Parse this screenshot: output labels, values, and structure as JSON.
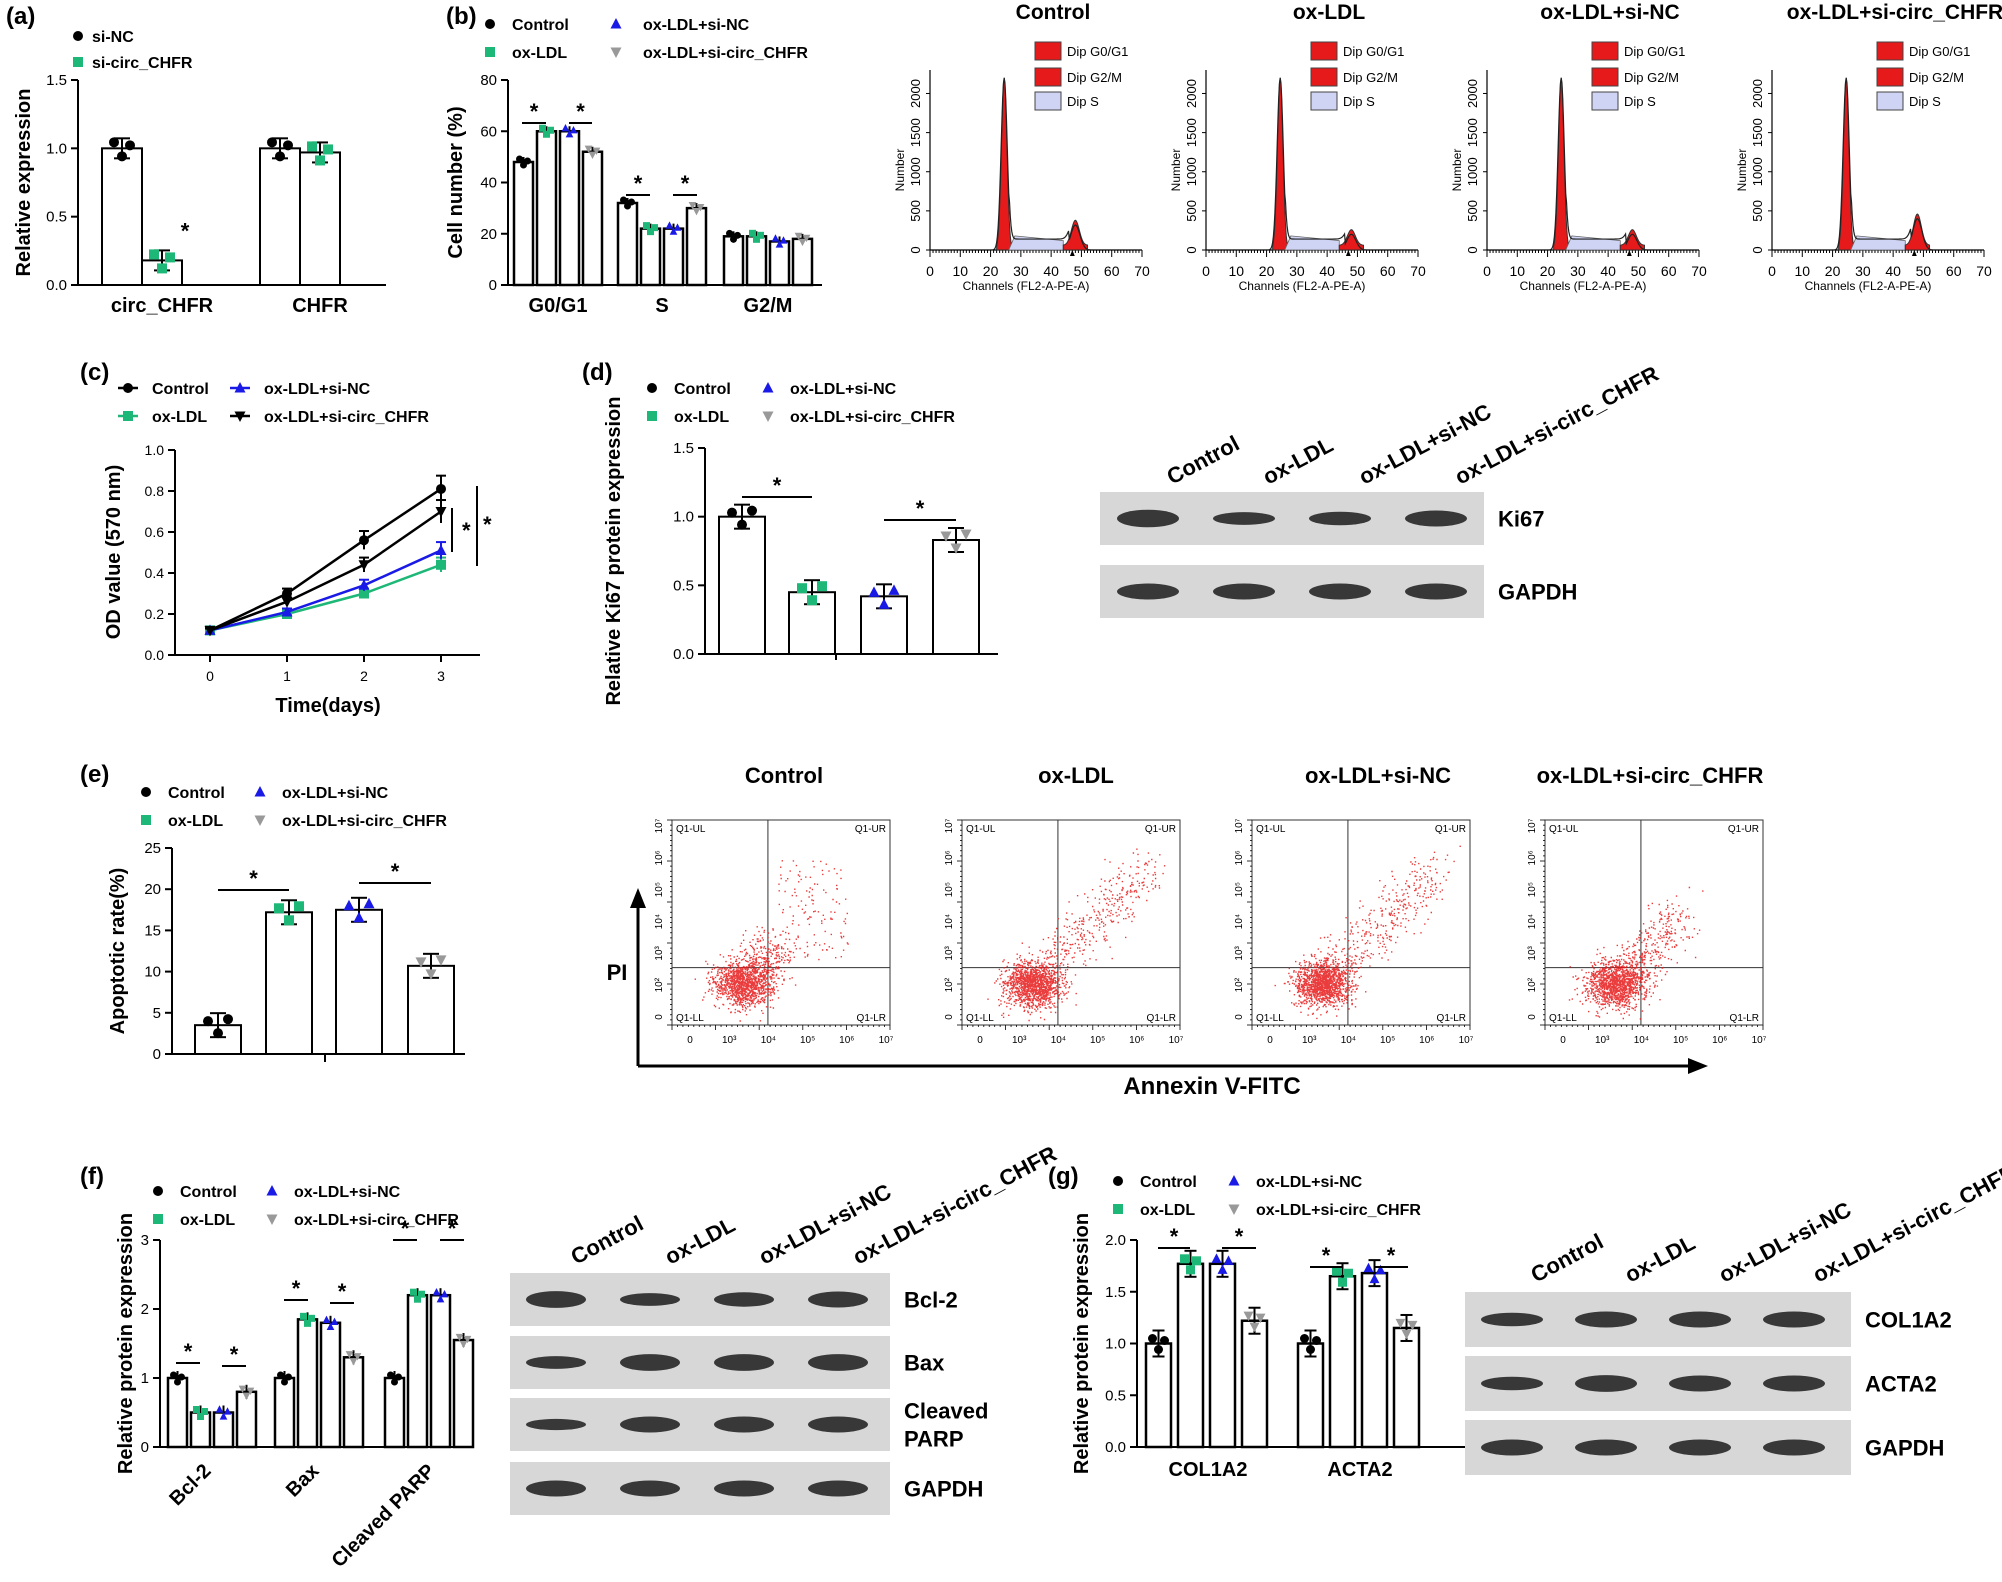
{
  "colors": {
    "black": "#000000",
    "green": "#1DB877",
    "blue": "#1A1AE6",
    "gray": "#999999",
    "red": "#E61A1A",
    "blot_bg": "#d7d7d7",
    "band": "#2a2a2a"
  },
  "chart_data": [
    {
      "id": "a",
      "label": "(a)",
      "type": "bar",
      "ylabel": "Relative expression",
      "ylim": [
        0,
        1.5
      ],
      "yticks": [
        "0.0",
        "0.5",
        "1.0",
        "1.5"
      ],
      "categories": [
        "circ_CHFR",
        "CHFR"
      ],
      "series": [
        {
          "name": "si-NC",
          "color_key": "black",
          "marker": "circle",
          "values": [
            1.0,
            1.0
          ]
        },
        {
          "name": "si-circ_CHFR",
          "color_key": "green",
          "marker": "square",
          "values": [
            0.18,
            0.97
          ]
        }
      ],
      "significance": [
        {
          "category": "circ_CHFR",
          "text": "*"
        }
      ]
    },
    {
      "id": "b",
      "label": "(b)",
      "type": "bar",
      "ylabel": "Cell number (%)",
      "ylim": [
        0,
        80
      ],
      "yticks": [
        "0",
        "20",
        "40",
        "60",
        "80"
      ],
      "categories": [
        "G0/G1",
        "S",
        "G2/M"
      ],
      "series": [
        {
          "name": "Control",
          "color_key": "black",
          "marker": "circle",
          "values": [
            48,
            32,
            19
          ]
        },
        {
          "name": "ox-LDL",
          "color_key": "green",
          "marker": "square",
          "values": [
            60,
            22,
            19
          ]
        },
        {
          "name": "ox-LDL+si-NC",
          "color_key": "blue",
          "marker": "triangle-up",
          "values": [
            60,
            22,
            17
          ]
        },
        {
          "name": "ox-LDL+si-circ_CHFR",
          "color_key": "gray",
          "marker": "triangle-down",
          "values": [
            52,
            30,
            18
          ]
        }
      ],
      "significance": [
        {
          "text": "*"
        },
        {
          "text": "*"
        },
        {
          "text": "*"
        },
        {
          "text": "*"
        }
      ]
    },
    {
      "id": "b-flow",
      "type": "histogram",
      "panels": [
        "Control",
        "ox-LDL",
        "ox-LDL+si-NC",
        "ox-LDL+si-circ_CHFR"
      ],
      "legend": [
        "Dip G0/G1",
        "Dip G2/M",
        "Dip S"
      ],
      "ylabel": "Number",
      "yticks": [
        "0",
        "500",
        "1000",
        "1500",
        "2000"
      ],
      "xlabel": "Channels (FL2-A-PE-A)",
      "xticks": [
        "0",
        "10",
        "20",
        "30",
        "40",
        "50",
        "60",
        "70"
      ]
    },
    {
      "id": "c",
      "label": "(c)",
      "type": "line",
      "ylabel": "OD value (570 nm)",
      "xlabel": "Time(days)",
      "x": [
        0,
        1,
        2,
        3
      ],
      "ylim": [
        0,
        1.0
      ],
      "yticks": [
        "0.0",
        "0.2",
        "0.4",
        "0.6",
        "0.8",
        "1.0"
      ],
      "xticks": [
        "0",
        "1",
        "2",
        "3"
      ],
      "series": [
        {
          "name": "Control",
          "color_key": "black",
          "marker": "circle",
          "values": [
            0.12,
            0.3,
            0.56,
            0.81
          ]
        },
        {
          "name": "ox-LDL",
          "color_key": "green",
          "marker": "square",
          "values": [
            0.12,
            0.2,
            0.3,
            0.44
          ]
        },
        {
          "name": "ox-LDL+si-NC",
          "color_key": "blue",
          "marker": "triangle-up",
          "values": [
            0.12,
            0.21,
            0.34,
            0.51
          ]
        },
        {
          "name": "ox-LDL+si-circ_CHFR",
          "color_key": "black",
          "marker": "triangle-down",
          "values": [
            0.12,
            0.26,
            0.44,
            0.7
          ]
        }
      ],
      "significance": [
        {
          "text": "*"
        },
        {
          "text": "*"
        }
      ]
    },
    {
      "id": "d",
      "label": "(d)",
      "type": "bar",
      "ylabel": "Relative Ki67 protein expression",
      "ylim": [
        0,
        1.5
      ],
      "yticks": [
        "0.0",
        "0.5",
        "1.0",
        "1.5"
      ],
      "categories": [
        "Control",
        "ox-LDL",
        "ox-LDL+si-NC",
        "ox-LDL+si-circ_CHFR"
      ],
      "values": [
        1.0,
        0.45,
        0.42,
        0.83
      ],
      "significance": [
        {
          "text": "*"
        },
        {
          "text": "*"
        }
      ]
    },
    {
      "id": "e",
      "label": "(e)",
      "type": "bar",
      "ylabel": "Apoptotic rate(%)",
      "ylim": [
        0,
        25
      ],
      "yticks": [
        "0",
        "5",
        "10",
        "15",
        "20",
        "25"
      ],
      "categories": [
        "Control",
        "ox-LDL",
        "ox-LDL+si-NC",
        "ox-LDL+si-circ_CHFR"
      ],
      "values": [
        3.5,
        17.2,
        17.5,
        10.7
      ],
      "significance": [
        {
          "text": "*"
        },
        {
          "text": "*"
        }
      ]
    },
    {
      "id": "e-flow",
      "type": "scatter",
      "panels": [
        "Control",
        "ox-LDL",
        "ox-LDL+si-NC",
        "ox-LDL+si-circ_CHFR"
      ],
      "quadrants": [
        "Q1-UL",
        "Q1-UR",
        "Q1-LL",
        "Q1-LR"
      ],
      "ylabel": "PI",
      "xlabel": "Annexin V-FITC",
      "ticks": [
        "0",
        "10³",
        "10⁴",
        "10⁵",
        "10⁶",
        "10⁷"
      ],
      "yticks": [
        "0",
        "10²",
        "10³",
        "10⁴",
        "10⁵",
        "10⁶",
        "10⁷"
      ]
    },
    {
      "id": "f",
      "label": "(f)",
      "type": "bar",
      "ylabel": "Relative protein expression",
      "ylim": [
        0,
        3
      ],
      "yticks": [
        "0",
        "1",
        "2",
        "3"
      ],
      "categories": [
        "Bcl-2",
        "Bax",
        "Cleaved PARP"
      ],
      "series": [
        {
          "name": "Control",
          "color_key": "black",
          "marker": "circle",
          "values": [
            1.0,
            1.0,
            1.0
          ]
        },
        {
          "name": "ox-LDL",
          "color_key": "green",
          "marker": "square",
          "values": [
            0.5,
            1.85,
            2.2
          ]
        },
        {
          "name": "ox-LDL+si-NC",
          "color_key": "blue",
          "marker": "triangle-up",
          "values": [
            0.5,
            1.8,
            2.2
          ]
        },
        {
          "name": "ox-LDL+si-circ_CHFR",
          "color_key": "gray",
          "marker": "triangle-down",
          "values": [
            0.8,
            1.3,
            1.55
          ]
        }
      ],
      "significance": [
        {
          "text": "*"
        },
        {
          "text": "*"
        },
        {
          "text": "*"
        },
        {
          "text": "*"
        },
        {
          "text": "*"
        },
        {
          "text": "*"
        }
      ]
    },
    {
      "id": "g",
      "label": "(g)",
      "type": "bar",
      "ylabel": "Relative protein expression",
      "ylim": [
        0,
        2.0
      ],
      "yticks": [
        "0.0",
        "0.5",
        "1.0",
        "1.5",
        "2.0"
      ],
      "categories": [
        "COL1A2",
        "ACTA2"
      ],
      "series": [
        {
          "name": "Control",
          "color_key": "black",
          "marker": "circle",
          "values": [
            1.0,
            1.0
          ]
        },
        {
          "name": "ox-LDL",
          "color_key": "green",
          "marker": "square",
          "values": [
            1.77,
            1.65
          ]
        },
        {
          "name": "ox-LDL+si-NC",
          "color_key": "blue",
          "marker": "triangle-up",
          "values": [
            1.77,
            1.68
          ]
        },
        {
          "name": "ox-LDL+si-circ_CHFR",
          "color_key": "gray",
          "marker": "triangle-down",
          "values": [
            1.22,
            1.15
          ]
        }
      ],
      "significance": [
        {
          "text": "*"
        },
        {
          "text": "*"
        },
        {
          "text": "*"
        },
        {
          "text": "*"
        }
      ]
    }
  ],
  "blots": {
    "d": {
      "lanes": [
        "Control",
        "ox-LDL",
        "ox-LDL+si-NC",
        "ox-LDL+si-circ_CHFR"
      ],
      "rows": [
        "Ki67",
        "GAPDH"
      ]
    },
    "f": {
      "lanes": [
        "Control",
        "ox-LDL",
        "ox-LDL+si-NC",
        "ox-LDL+si-circ_CHFR"
      ],
      "rows": [
        "Bcl-2",
        "Bax",
        "Cleaved PARP",
        "GAPDH"
      ]
    },
    "g": {
      "lanes": [
        "Control",
        "ox-LDL",
        "ox-LDL+si-NC",
        "ox-LDL+si-circ_CHFR"
      ],
      "rows": [
        "COL1A2",
        "ACTA2",
        "GAPDH"
      ]
    }
  }
}
